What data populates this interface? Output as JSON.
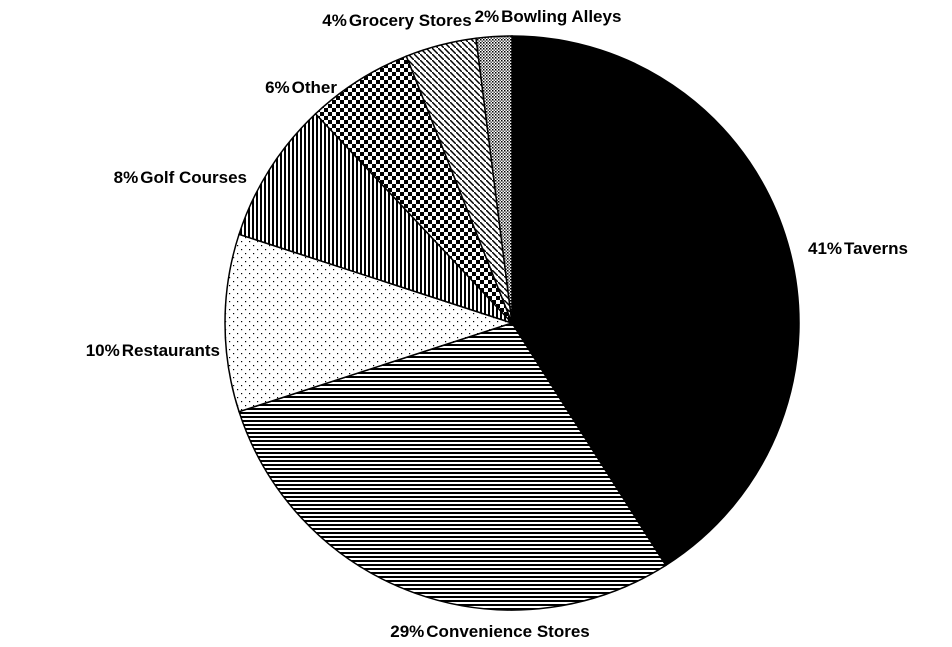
{
  "chart_data": {
    "type": "pie",
    "categories": [
      "Taverns",
      "Convenience Stores",
      "Restaurants",
      "Golf Courses",
      "Other",
      "Grocery Stores",
      "Bowling Alleys"
    ],
    "values": [
      41,
      29,
      10,
      8,
      6,
      4,
      2
    ],
    "value_labels": [
      "41%",
      "29%",
      "10%",
      "8%",
      "6%",
      "4%",
      "2%"
    ]
  }
}
